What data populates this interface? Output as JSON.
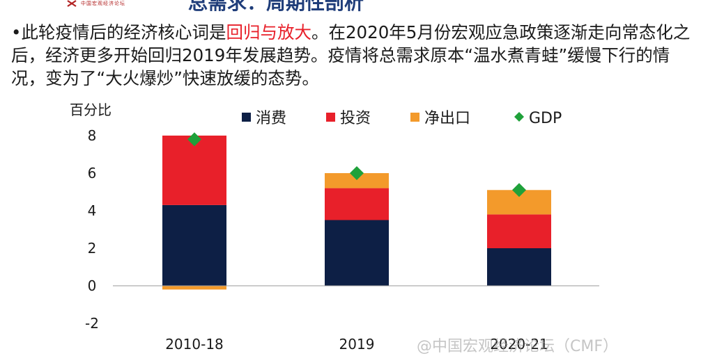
{
  "logo": {
    "text": "中国宏观经济论坛"
  },
  "title": "总需求：周期性剖析",
  "bullet": {
    "prefix": "•此轮疫情后的经济核心词是",
    "highlight": "回归与放大",
    "suffix": "。在2020年5月份宏观应急政策逐渐走向常态化之后，经济更多开始回归2019年发展趋势。疫情将总需求原本“温水煮青蛙”缓慢下行的情况，变为了“大火爆炒”快速放缓的态势。"
  },
  "watermark": "@中国宏观经济论坛（CMF）",
  "colors": {
    "consumption": "#0d1f45",
    "investment": "#e8202a",
    "net_exports": "#f39a2b",
    "gdp": "#1fa13a",
    "highlight": "#e8202a"
  },
  "chart_data": {
    "type": "bar",
    "stacked": true,
    "ylabel": "百分比",
    "ylim": [
      -2,
      8
    ],
    "yticks": [
      -2,
      0,
      2,
      4,
      6,
      8
    ],
    "categories": [
      "2010-18",
      "2019",
      "2020-21"
    ],
    "series": [
      {
        "name": "消费",
        "values": [
          4.3,
          3.5,
          2.0
        ]
      },
      {
        "name": "投资",
        "values": [
          3.7,
          1.7,
          1.8
        ]
      },
      {
        "name": "净出口",
        "values": [
          -0.2,
          0.8,
          1.3
        ]
      }
    ],
    "gdp": {
      "name": "GDP",
      "values": [
        7.8,
        6.0,
        5.1
      ]
    },
    "legend_position": "top"
  }
}
